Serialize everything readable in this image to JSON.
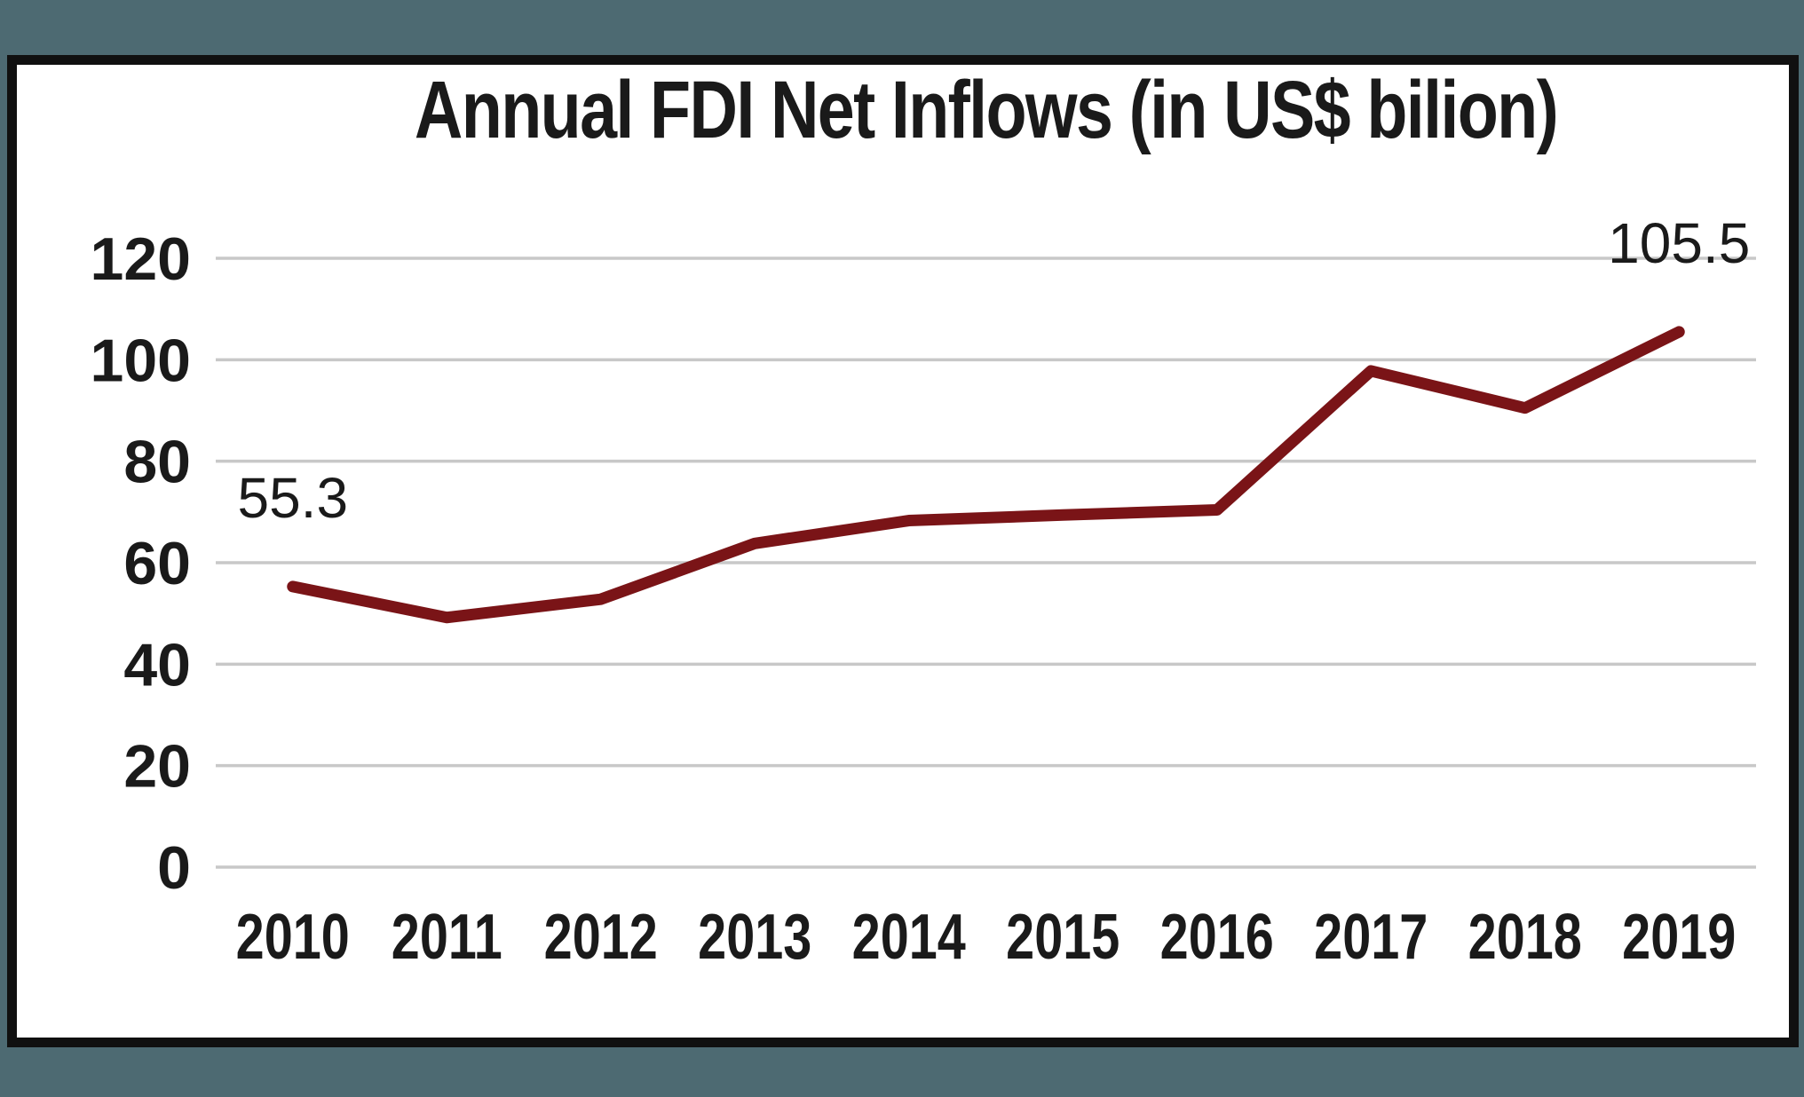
{
  "page": {
    "background_color": "#4d6a72",
    "frame_border_color": "#101010",
    "panel_color": "#ffffff"
  },
  "chart_data": {
    "type": "line",
    "title": "Annual FDI Net Inflows (in US$ bilion)",
    "categories": [
      "2010",
      "2011",
      "2012",
      "2013",
      "2014",
      "2015",
      "2016",
      "2017",
      "2018",
      "2019"
    ],
    "series": [
      {
        "name": "Annual FDI Net Inflows",
        "values": [
          55.3,
          49.2,
          52.8,
          63.8,
          68.3,
          69.4,
          70.4,
          97.8,
          90.5,
          105.5
        ]
      }
    ],
    "data_labels": [
      {
        "category": "2010",
        "text": "55.3"
      },
      {
        "category": "2019",
        "text": "105.5"
      }
    ],
    "ylim": [
      0,
      120
    ],
    "yticks": [
      0,
      20,
      40,
      60,
      80,
      100,
      120
    ],
    "grid": true,
    "legend": "none",
    "line_color": "#7a1417",
    "gridline_color": "#c8c8c8",
    "text_color": "#1a1a1a"
  }
}
